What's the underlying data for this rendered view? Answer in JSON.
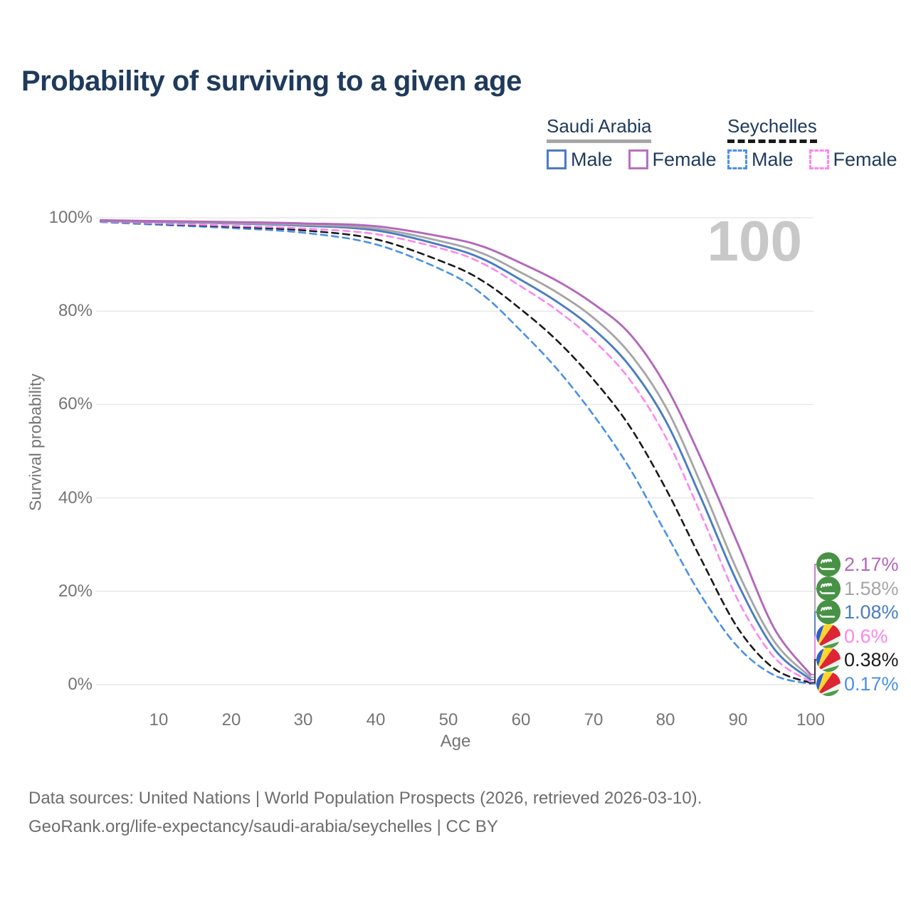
{
  "title": "Probability of surviving to a given age",
  "watermark": "100",
  "colors": {
    "title_text": "#1f3a5c",
    "axis_text": "#757575",
    "gridline": "#e8e8e8",
    "footer_text": "#6d6d6d",
    "watermark": "#c8c8c8"
  },
  "legend": {
    "groups": [
      {
        "name": "Saudi Arabia",
        "line_style": "solid",
        "underline_color": "#a6a6a6",
        "items": [
          {
            "label": "Male",
            "color": "#4a7cc2"
          },
          {
            "label": "Female",
            "color": "#b970bd"
          }
        ]
      },
      {
        "name": "Seychelles",
        "line_style": "dashed",
        "underline_color": "#1a1a1a",
        "items": [
          {
            "label": "Male",
            "color": "#4a90e8"
          },
          {
            "label": "Female",
            "color": "#ff85ee"
          }
        ]
      }
    ]
  },
  "axes": {
    "y_label": "Survival probability",
    "x_label": "Age",
    "y_ticks": [
      "100%",
      "80%",
      "60%",
      "40%",
      "20%",
      "0%"
    ],
    "y_tick_values": [
      100,
      80,
      60,
      40,
      20,
      0
    ],
    "x_ticks": [
      "10",
      "20",
      "30",
      "40",
      "50",
      "60",
      "70",
      "80",
      "90",
      "100"
    ],
    "x_tick_values": [
      10,
      20,
      30,
      40,
      50,
      60,
      70,
      80,
      90,
      100
    ],
    "x_range": [
      0,
      100
    ],
    "y_range": [
      0,
      100
    ],
    "grid": "horizontal-only"
  },
  "chart_data": {
    "type": "line",
    "x_ages": [
      2,
      10,
      20,
      30,
      40,
      50,
      55,
      60,
      65,
      70,
      75,
      80,
      85,
      90,
      95,
      100
    ],
    "series": [
      {
        "name": "Saudi Arabia Female",
        "country": "Saudi Arabia",
        "sex": "Female",
        "color": "#b367ba",
        "dash": false,
        "flag": "saudi-arabia",
        "values": [
          99.5,
          99.3,
          99.1,
          98.8,
          98.2,
          95.7,
          93.7,
          90.3,
          86.5,
          81.6,
          75.2,
          64.0,
          48.0,
          30.0,
          12.0,
          2.17
        ],
        "end_label": "2.17%"
      },
      {
        "name": "Saudi Arabia Both sexes",
        "country": "Saudi Arabia",
        "sex": "Both",
        "color": "#a6a6a6",
        "dash": false,
        "flag": "saudi-arabia",
        "values": [
          99.4,
          99.2,
          98.9,
          98.5,
          97.7,
          94.6,
          92.2,
          88.3,
          84.0,
          78.6,
          71.0,
          59.5,
          42.5,
          24.0,
          9.2,
          1.58
        ],
        "end_label": "1.58%"
      },
      {
        "name": "Saudi Arabia Male",
        "country": "Saudi Arabia",
        "sex": "Male",
        "color": "#4a7cc2",
        "dash": false,
        "flag": "saudi-arabia",
        "values": [
          99.3,
          99.1,
          98.8,
          98.3,
          97.3,
          93.7,
          91.0,
          86.7,
          82.0,
          76.2,
          68.3,
          56.5,
          39.5,
          21.5,
          7.6,
          1.08
        ],
        "end_label": "1.08%"
      },
      {
        "name": "Seychelles Female",
        "country": "Seychelles",
        "sex": "Female",
        "color": "#ff85ee",
        "dash": true,
        "flag": "seychelles",
        "values": [
          99.2,
          98.8,
          98.3,
          97.7,
          96.5,
          93.0,
          90.0,
          85.3,
          80.2,
          73.8,
          65.4,
          53.0,
          36.0,
          18.0,
          5.8,
          0.6
        ],
        "end_label": "0.6%"
      },
      {
        "name": "Seychelles Both sexes",
        "country": "Seychelles",
        "sex": "Both",
        "color": "#1a1a1a",
        "dash": true,
        "flag": "seychelles",
        "values": [
          99.2,
          98.7,
          98.1,
          97.3,
          95.4,
          90.1,
          86.2,
          80.4,
          73.7,
          65.4,
          55.4,
          42.0,
          26.5,
          12.0,
          3.4,
          0.38
        ],
        "end_label": "0.38%"
      },
      {
        "name": "Seychelles Male",
        "country": "Seychelles",
        "sex": "Male",
        "color": "#4a90e8",
        "dash": true,
        "flag": "seychelles",
        "values": [
          99.1,
          98.5,
          97.8,
          96.8,
          94.3,
          88.2,
          83.2,
          75.8,
          67.6,
          57.8,
          46.4,
          32.5,
          18.8,
          8.0,
          2.0,
          0.17
        ],
        "end_label": "0.17%"
      }
    ]
  },
  "footer": {
    "line1": "Data sources: United Nations | World Population Prospects (2026, retrieved 2026-03-10).",
    "line2": "GeoRank.org/life-expectancy/saudi-arabia/seychelles | CC BY"
  }
}
